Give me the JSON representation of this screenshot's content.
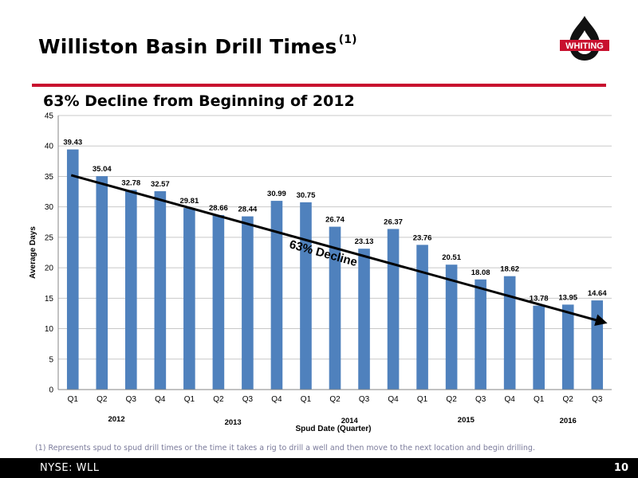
{
  "header": {
    "title": "Williston Basin Drill Times",
    "title_superscript": "(1)",
    "subtitle": "63% Decline from Beginning of 2012",
    "logo_text": "WHITING"
  },
  "chart_data": {
    "type": "bar",
    "categories": [
      "Q1",
      "Q2",
      "Q3",
      "Q4",
      "Q1",
      "Q2",
      "Q3",
      "Q4",
      "Q1",
      "Q2",
      "Q3",
      "Q4",
      "Q1",
      "Q2",
      "Q3",
      "Q4",
      "Q1",
      "Q2",
      "Q3"
    ],
    "year_labels": [
      "2012",
      "2013",
      "2014",
      "2015",
      "2016"
    ],
    "values": [
      39.43,
      35.04,
      32.78,
      32.57,
      29.81,
      28.66,
      28.44,
      30.99,
      30.75,
      26.74,
      23.13,
      26.37,
      23.76,
      20.51,
      18.08,
      18.62,
      13.78,
      13.95,
      14.64
    ],
    "value_labels": [
      "39.43",
      "35.04",
      "32.78",
      "32.57",
      "29.81",
      "28.66",
      "28.44",
      "30.99",
      "30.75",
      "26.74",
      "23.13",
      "26.37",
      "23.76",
      "20.51",
      "18.08",
      "18.62",
      "13.78",
      "13.95",
      "14.64"
    ],
    "xlabel": "Spud Date (Quarter)",
    "ylabel": "Average Days",
    "ylim": [
      0,
      45
    ],
    "yticks": [
      "0",
      "5",
      "10",
      "15",
      "20",
      "25",
      "30",
      "35",
      "40",
      "45"
    ],
    "grid": true,
    "bar_color": "#4f81bd",
    "trend": {
      "label": "63% Decline",
      "start_value": 35.2,
      "end_value": 11.0
    }
  },
  "footnote": "(1) Represents spud to spud drill times or the time it takes a rig to drill a well and then move to the next location and begin drilling.",
  "footer": {
    "ticker": "NYSE: WLL",
    "page_number": "10"
  }
}
